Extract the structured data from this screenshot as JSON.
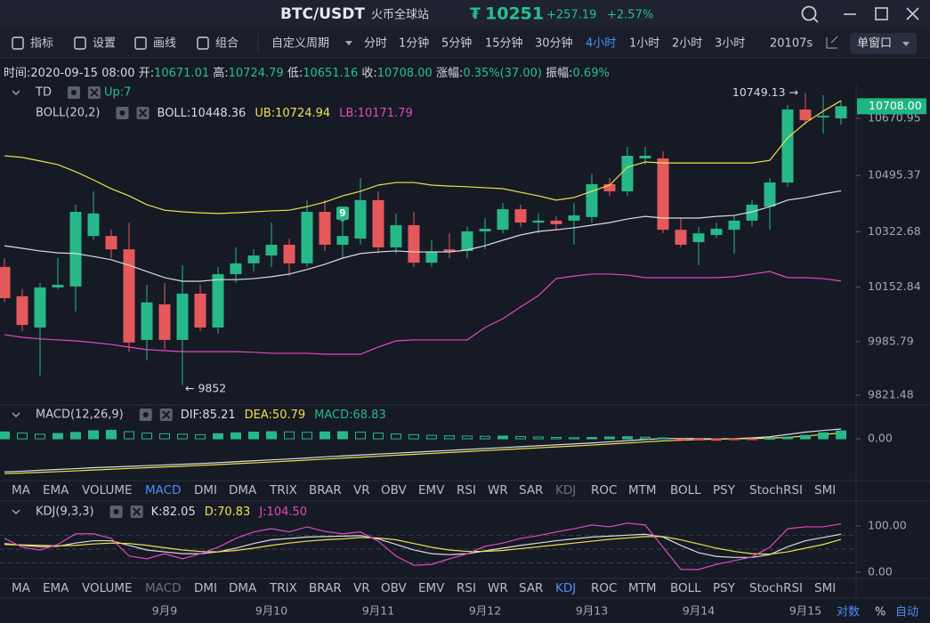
{
  "header": {
    "symbol": "BTC/USDT",
    "exchange": "火币全球站",
    "currency": "₮",
    "price": "10251",
    "change": "+257.19",
    "change_pct": "+2.57%"
  },
  "toolbar": {
    "tools": [
      "指标",
      "设置",
      "画线",
      "组合"
    ],
    "custom_period": "自定义周期",
    "periods": [
      "分时",
      "1分钟",
      "5分钟",
      "15分钟",
      "30分钟",
      "4小时",
      "1小时",
      "2小时",
      "3小时"
    ],
    "active_period": 5,
    "countdown": "20107s",
    "window_mode": "单窗口"
  },
  "info": [
    {
      "label": "时间:",
      "value": "2020-09-15 08:00"
    },
    {
      "label": "开:",
      "value": "10671.01"
    },
    {
      "label": "高:",
      "value": "10724.79"
    },
    {
      "label": "低:",
      "value": "10651.16"
    },
    {
      "label": "收:",
      "value": "10708.00"
    },
    {
      "label": "涨幅:",
      "value": "0.35%(37.00)"
    },
    {
      "label": "振幅:",
      "value": "0.69%"
    }
  ],
  "chart_data": [
    {
      "type": "candlestick",
      "indicator": "TD",
      "indicator_value": "Up:7",
      "title": "BOLL(20,2)",
      "categories": [
        null,
        null,
        null,
        null,
        null,
        null,
        null,
        null,
        null,
        "9月9",
        null,
        null,
        null,
        null,
        null,
        "9月10",
        null,
        null,
        null,
        null,
        null,
        "9月11",
        null,
        null,
        null,
        null,
        null,
        "9月12",
        null,
        null,
        null,
        null,
        null,
        "9月13",
        null,
        null,
        null,
        null,
        null,
        "9月14",
        null,
        null,
        null,
        null,
        null,
        "9月15",
        null,
        null
      ],
      "ohlc": [
        [
          10215,
          10242,
          10106,
          10119
        ],
        [
          10125,
          10146,
          10018,
          10037
        ],
        [
          10029,
          10166,
          9882,
          10152
        ],
        [
          10152,
          10242,
          10146,
          10160
        ],
        [
          10155,
          10406,
          10078,
          10384
        ],
        [
          10310,
          10447,
          10297,
          10379
        ],
        [
          10310,
          10329,
          10242,
          10269
        ],
        [
          10269,
          10351,
          9955,
          9983
        ],
        [
          9991,
          10160,
          9928,
          10106
        ],
        [
          10100,
          10166,
          9963,
          9991
        ],
        [
          9991,
          10220,
          9852,
          10133
        ],
        [
          10133,
          10160,
          10018,
          10029
        ],
        [
          10029,
          10215,
          10010,
          10193
        ],
        [
          10193,
          10275,
          10166,
          10226
        ],
        [
          10226,
          10269,
          10201,
          10250
        ],
        [
          10250,
          10351,
          10215,
          10283
        ],
        [
          10283,
          10302,
          10187,
          10226
        ],
        [
          10226,
          10420,
          10215,
          10384
        ],
        [
          10384,
          10420,
          10264,
          10283
        ],
        [
          10283,
          10351,
          10242,
          10310
        ],
        [
          10302,
          10488,
          10283,
          10420
        ],
        [
          10420,
          10447,
          10256,
          10275
        ],
        [
          10275,
          10379,
          10256,
          10343
        ],
        [
          10343,
          10384,
          10215,
          10228
        ],
        [
          10228,
          10297,
          10215,
          10261
        ],
        [
          10269,
          10318,
          10242,
          10261
        ],
        [
          10264,
          10338,
          10242,
          10324
        ],
        [
          10324,
          10365,
          10269,
          10332
        ],
        [
          10329,
          10411,
          10318,
          10392
        ],
        [
          10392,
          10406,
          10338,
          10351
        ],
        [
          10351,
          10379,
          10318,
          10357
        ],
        [
          10357,
          10370,
          10329,
          10346
        ],
        [
          10357,
          10411,
          10283,
          10373
        ],
        [
          10368,
          10501,
          10351,
          10469
        ],
        [
          10469,
          10488,
          10433,
          10447
        ],
        [
          10447,
          10583,
          10433,
          10556
        ],
        [
          10548,
          10583,
          10529,
          10556
        ],
        [
          10548,
          10570,
          10318,
          10329
        ],
        [
          10329,
          10365,
          10275,
          10283
        ],
        [
          10291,
          10338,
          10220,
          10318
        ],
        [
          10313,
          10351,
          10302,
          10332
        ],
        [
          10329,
          10373,
          10256,
          10357
        ],
        [
          10357,
          10420,
          10338,
          10406
        ],
        [
          10400,
          10488,
          10329,
          10474
        ],
        [
          10474,
          10712,
          10461,
          10698
        ],
        [
          10698,
          10749.13,
          10652,
          10665
        ],
        [
          10674,
          10742,
          10624,
          10679
        ],
        [
          10671.01,
          10724.79,
          10651.16,
          10708
        ]
      ],
      "up_color": "#26b889",
      "down_color": "#e5585b",
      "series": [
        {
          "name": "BOLL:10448.36",
          "color": "#d9dce3",
          "values": [
            10280,
            10272,
            10264,
            10258,
            10256,
            10247,
            10237,
            10220,
            10201,
            10182,
            10171,
            10171,
            10176,
            10176,
            10179,
            10185,
            10193,
            10207,
            10223,
            10242,
            10256,
            10261,
            10264,
            10261,
            10261,
            10261,
            10267,
            10280,
            10297,
            10313,
            10324,
            10329,
            10335,
            10343,
            10351,
            10362,
            10370,
            10365,
            10365,
            10365,
            10370,
            10373,
            10384,
            10400,
            10420,
            10428,
            10439,
            10448.36
          ]
        },
        {
          "name": "UB:10724.94",
          "color": "#efe04e",
          "values": [
            10556,
            10551,
            10540,
            10529,
            10507,
            10482,
            10455,
            10433,
            10406,
            10389,
            10384,
            10381,
            10379,
            10381,
            10384,
            10387,
            10389,
            10400,
            10414,
            10433,
            10447,
            10466,
            10474,
            10474,
            10466,
            10463,
            10461,
            10458,
            10455,
            10444,
            10433,
            10420,
            10428,
            10447,
            10466,
            10521,
            10537,
            10534,
            10534,
            10534,
            10534,
            10534,
            10534,
            10542,
            10611,
            10657,
            10693,
            10724.94
          ]
        },
        {
          "name": "LB:10171.79",
          "color": "#e04bc0",
          "values": [
            10007,
            9999,
            9994,
            9991,
            9988,
            9983,
            9977,
            9969,
            9961,
            9958,
            9955,
            9955,
            9955,
            9955,
            9953,
            9950,
            9950,
            9950,
            9947,
            9947,
            9947,
            9969,
            9988,
            9991,
            9991,
            9991,
            9991,
            10029,
            10056,
            10092,
            10127,
            10179,
            10187,
            10193,
            10193,
            10190,
            10182,
            10182,
            10182,
            10182,
            10182,
            10185,
            10193,
            10201,
            10182,
            10182,
            10179,
            10171.79
          ]
        }
      ],
      "ylim": [
        9791.4,
        10774.6
      ],
      "yticks": [
        10670.95,
        10495.37,
        10322.68,
        10152.84,
        9985.79,
        9821.48
      ],
      "last_price": {
        "value": 10708,
        "label": "10708.00"
      },
      "annotations": [
        {
          "index": 45,
          "value": 10749.13,
          "label": "10749.13 →"
        },
        {
          "index": 10,
          "value": 9852,
          "label": "← 9852"
        }
      ],
      "td_marks": [
        {
          "index": 19,
          "count": 9
        }
      ]
    },
    {
      "type": "macd",
      "title": "MACD(12,26,9)",
      "series": [
        {
          "name": "DIF:85.21",
          "color": "#d9dce3",
          "kind": "line",
          "values": [
            -285,
            -280,
            -272,
            -265,
            -258,
            -250,
            -244,
            -238,
            -232,
            -226,
            -220,
            -214,
            -206,
            -198,
            -190,
            -182,
            -174,
            -166,
            -156,
            -148,
            -140,
            -132,
            -124,
            -116,
            -108,
            -100,
            -92,
            -84,
            -76,
            -68,
            -60,
            -52,
            -44,
            -36,
            -26,
            -16,
            -6,
            2,
            4,
            2,
            0,
            2,
            8,
            18,
            38,
            58,
            72,
            85.21
          ]
        },
        {
          "name": "DEA:50.79",
          "color": "#efe04e",
          "kind": "line",
          "values": [
            -300,
            -296,
            -290,
            -284,
            -277,
            -270,
            -263,
            -256,
            -250,
            -243,
            -237,
            -230,
            -223,
            -215,
            -208,
            -200,
            -192,
            -184,
            -175,
            -167,
            -159,
            -150,
            -142,
            -134,
            -126,
            -118,
            -110,
            -102,
            -94,
            -86,
            -78,
            -70,
            -62,
            -54,
            -45,
            -36,
            -27,
            -18,
            -12,
            -6,
            -3,
            0,
            2,
            6,
            13,
            24,
            37,
            50.79
          ]
        },
        {
          "name": "MACD:68.83",
          "color": "#26b889",
          "negative_color": "#e5585b",
          "kind": "bar",
          "values": [
            60,
            50,
            40,
            46,
            56,
            70,
            74,
            62,
            50,
            44,
            40,
            36,
            44,
            52,
            58,
            62,
            60,
            56,
            60,
            62,
            58,
            50,
            42,
            36,
            30,
            26,
            24,
            22,
            24,
            20,
            16,
            12,
            10,
            12,
            16,
            18,
            14,
            8,
            -6,
            -10,
            -12,
            -8,
            -4,
            4,
            14,
            30,
            52,
            68.83
          ]
        }
      ],
      "ylim": [
        -346,
        270
      ],
      "yticks": [
        {
          "value": 0,
          "label": "0.00"
        }
      ]
    },
    {
      "type": "line",
      "title": "KDJ(9,3,3)",
      "series": [
        {
          "name": "K:82.05",
          "color": "#d9dce3",
          "values": [
            62,
            58,
            55,
            56,
            63,
            68,
            68,
            58,
            48,
            44,
            40,
            40,
            44,
            52,
            62,
            70,
            73,
            76,
            77,
            78,
            79,
            72,
            60,
            48,
            40,
            38,
            40,
            46,
            52,
            58,
            63,
            68,
            72,
            76,
            78,
            80,
            82,
            76,
            58,
            42,
            34,
            32,
            32,
            38,
            55,
            68,
            75,
            82.05
          ]
        },
        {
          "name": "D:70.83",
          "color": "#efe04e",
          "values": [
            60,
            59,
            58,
            57,
            58,
            61,
            63,
            62,
            58,
            53,
            48,
            45,
            44,
            47,
            52,
            58,
            63,
            67,
            70,
            72,
            75,
            74,
            70,
            62,
            54,
            48,
            45,
            45,
            47,
            51,
            55,
            59,
            63,
            67,
            71,
            74,
            77,
            77,
            70,
            61,
            52,
            45,
            40,
            39,
            44,
            52,
            60,
            70.83
          ]
        },
        {
          "name": "J:104.50",
          "color": "#e04bc0",
          "values": [
            73,
            54,
            48,
            60,
            83,
            83,
            73,
            35,
            29,
            40,
            29,
            40,
            54,
            73,
            87,
            94,
            87,
            98,
            88,
            83,
            87,
            67,
            35,
            15,
            17,
            29,
            40,
            56,
            63,
            73,
            79,
            87,
            94,
            102,
            98,
            106,
            102,
            54,
            6,
            6,
            17,
            25,
            33,
            54,
            94,
            98,
            98,
            104.5
          ]
        }
      ],
      "ref_lines": [
        20,
        50,
        80
      ],
      "ylim": [
        -13.5,
        144
      ],
      "yticks": [
        {
          "value": 100,
          "label": "100.00"
        },
        {
          "value": 0,
          "label": "0.00"
        }
      ]
    }
  ],
  "indicator_tabs": {
    "items": [
      "MA",
      "EMA",
      "VOLUME",
      "MACD",
      "DMI",
      "DMA",
      "TRIX",
      "BRAR",
      "VR",
      "OBV",
      "EMV",
      "RSI",
      "WR",
      "SAR",
      "KDJ",
      "ROC",
      "MTM",
      "BOLL",
      "PSY",
      "StochRSI",
      "SMI"
    ],
    "rows": [
      {
        "active": 3,
        "muted": 14
      },
      {
        "active": 14,
        "muted": 3
      }
    ]
  },
  "axis_modes": [
    "对数",
    "%",
    "自动"
  ]
}
